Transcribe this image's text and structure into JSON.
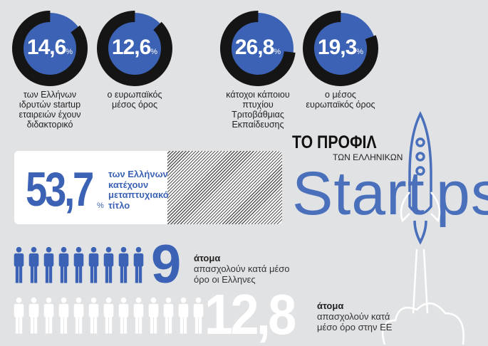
{
  "donuts": [
    {
      "value": "14,6",
      "percent": 14.6,
      "unit": "%",
      "label": "των Ελλήνων ιδρυτών startup εταιρειών έχουν διδακτορικό"
    },
    {
      "value": "12,6",
      "percent": 12.6,
      "unit": "%",
      "label": "ο ευρωπαϊκός μέσος όρος"
    },
    {
      "value": "26,8",
      "percent": 26.8,
      "unit": "%",
      "label": "κάτοχοι κάποιου πτυχίου Τριτοβάθμιας Εκπαίδευσης"
    },
    {
      "value": "19,3",
      "percent": 19.3,
      "unit": "%",
      "label": "ο μέσος ευρωπαϊκός όρος"
    }
  ],
  "masters": {
    "value": "53,7",
    "unit": "%",
    "label": "των Ελλήνων κατέχουν μεταπτυχιακό τίτλο"
  },
  "title": {
    "line1": "ΤΟ ΠΡΟΦΙΛ",
    "line2": "ΤΩΝ ΕΛΛΗΝΙΚΩΝ",
    "word_start": "Start",
    "word_end": "ps"
  },
  "employees_gr": {
    "value": "9",
    "count": 9,
    "bold": "άτομα",
    "text": "απασχολούν κατά μέσο όρο οι Ελληνες"
  },
  "employees_eu": {
    "value": "12,8",
    "count": 12.8,
    "bold": "άτομα",
    "text": "απασχολούν κατά μέσο όρο στην ΕΕ"
  },
  "colors": {
    "blue": "#3b62b4",
    "ring": "#151515",
    "background": "#e1e2e4"
  }
}
